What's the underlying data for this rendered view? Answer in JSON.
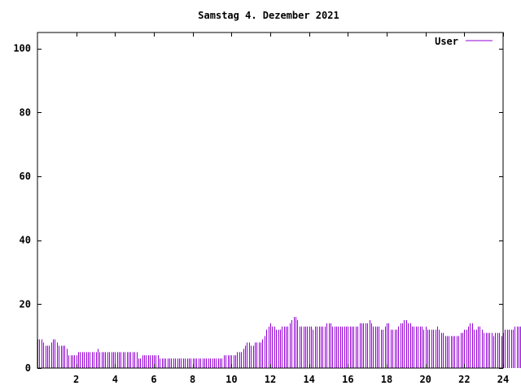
{
  "chart_data": {
    "type": "bar",
    "title": "Samstag 4. Dezember 2021",
    "xlabel": "",
    "ylabel": "",
    "xlim": [
      0,
      24
    ],
    "ylim": [
      0,
      105
    ],
    "x_ticks": [
      2,
      4,
      6,
      8,
      10,
      12,
      14,
      16,
      18,
      20,
      22,
      24
    ],
    "x_tick_labels": [
      "2",
      "4",
      "6",
      "8",
      "10",
      "12",
      "14",
      "16",
      "18",
      "20",
      "22",
      "24"
    ],
    "y_ticks": [
      0,
      20,
      40,
      60,
      80,
      100
    ],
    "y_tick_labels": [
      "0",
      "20",
      "40",
      "60",
      "80",
      "100"
    ],
    "grid": false,
    "legend": {
      "position": "top-right"
    },
    "series": [
      {
        "name": "User",
        "color": "#9400d3",
        "interval_hours": 0.1,
        "start_hour": 0,
        "values": [
          9,
          9,
          9,
          8,
          7,
          7,
          7,
          8,
          9,
          9,
          8,
          7,
          7,
          7,
          7,
          6,
          4,
          4,
          4,
          4,
          4,
          5,
          5,
          5,
          5,
          5,
          5,
          5,
          5,
          5,
          5,
          6,
          5,
          5,
          5,
          5,
          5,
          5,
          5,
          5,
          5,
          5,
          5,
          5,
          5,
          5,
          5,
          5,
          5,
          5,
          5,
          5,
          3,
          3,
          4,
          4,
          4,
          4,
          4,
          4,
          4,
          4,
          4,
          3,
          3,
          3,
          3,
          3,
          3,
          3,
          3,
          3,
          3,
          3,
          3,
          3,
          3,
          3,
          3,
          3,
          3,
          3,
          3,
          3,
          3,
          3,
          3,
          3,
          3,
          3,
          3,
          3,
          3,
          3,
          3,
          3,
          4,
          4,
          4,
          4,
          4,
          4,
          4,
          5,
          5,
          5,
          6,
          7,
          8,
          8,
          7,
          7,
          8,
          8,
          8,
          8,
          9,
          10,
          12,
          13,
          14,
          13,
          13,
          12,
          12,
          12,
          13,
          13,
          13,
          13,
          14,
          15,
          16,
          16,
          15,
          13,
          13,
          13,
          13,
          13,
          13,
          13,
          12,
          13,
          13,
          13,
          13,
          13,
          13,
          14,
          14,
          14,
          13,
          13,
          13,
          13,
          13,
          13,
          13,
          13,
          13,
          13,
          13,
          13,
          13,
          13,
          14,
          14,
          14,
          14,
          14,
          15,
          14,
          13,
          13,
          13,
          13,
          12,
          12,
          13,
          14,
          14,
          12,
          12,
          12,
          12,
          13,
          14,
          14,
          15,
          15,
          14,
          14,
          13,
          13,
          13,
          13,
          13,
          13,
          12,
          13,
          12,
          12,
          12,
          12,
          12,
          13,
          12,
          11,
          11,
          10,
          10,
          10,
          10,
          10,
          10,
          10,
          10,
          11,
          11,
          12,
          12,
          13,
          14,
          14,
          12,
          12,
          13,
          13,
          12,
          11,
          11,
          11,
          11,
          11,
          10,
          11,
          11,
          11,
          10,
          11,
          12,
          12,
          12,
          12,
          12,
          13,
          13,
          13,
          13,
          13,
          13,
          14,
          15,
          14,
          15,
          15,
          15,
          15,
          15,
          15,
          16,
          16,
          16,
          16,
          17,
          16,
          16,
          16,
          15,
          15,
          15,
          15,
          14,
          14,
          15,
          14,
          13,
          12,
          12,
          13,
          13,
          11,
          11,
          12,
          12,
          11,
          11,
          12
        ]
      }
    ]
  }
}
